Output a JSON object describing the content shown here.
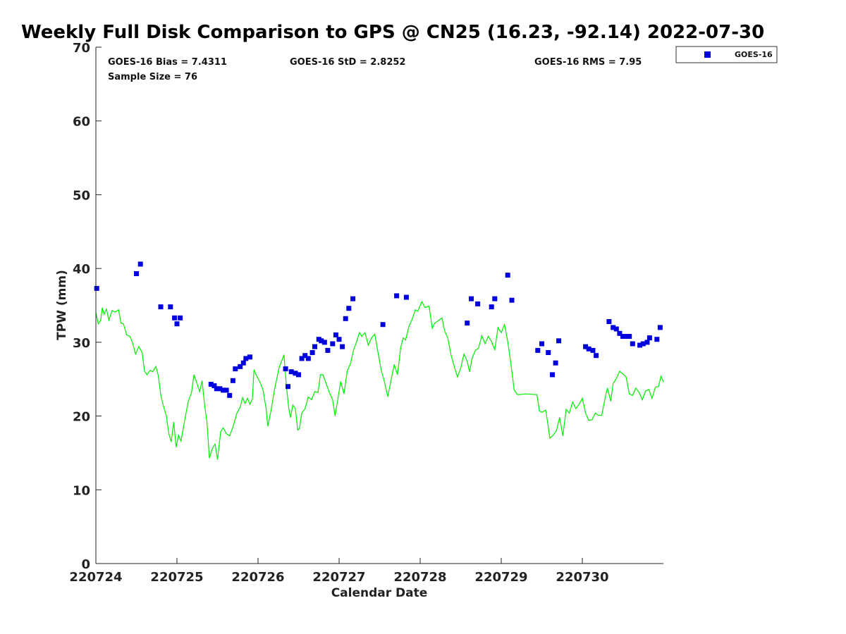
{
  "chart_data": {
    "type": "scatter",
    "title": "Weekly Full Disk Comparison to GPS @ CN25 (16.23, -92.14) 2022-07-30",
    "xlabel": "Calendar Date",
    "ylabel": "TPW (mm)",
    "xlim": [
      220724,
      220731
    ],
    "ylim": [
      0,
      70
    ],
    "x_ticks": [
      "220724",
      "220725",
      "220726",
      "220727",
      "220728",
      "220729",
      "220730"
    ],
    "y_ticks": [
      0,
      10,
      20,
      30,
      40,
      50,
      60,
      70
    ],
    "grid": false,
    "legend": {
      "position": "top-right",
      "entries": [
        "GOES-16"
      ]
    },
    "stats": {
      "bias": "GOES-16 Bias = 7.4311",
      "std": "GOES-16 StD = 2.8252",
      "rms": "GOES-16 RMS = 7.95",
      "sample_size": "Sample Size = 76"
    },
    "colors": {
      "goes16": "#0000dd",
      "gps": "#00ee00"
    },
    "series": [
      {
        "name": "GOES-16",
        "kind": "scatter",
        "points": [
          [
            220724.01,
            37.3
          ],
          [
            220724.5,
            39.3
          ],
          [
            220724.55,
            40.6
          ],
          [
            220724.8,
            34.8
          ],
          [
            220724.92,
            34.8
          ],
          [
            220724.97,
            33.3
          ],
          [
            220725.0,
            32.5
          ],
          [
            220725.04,
            33.3
          ],
          [
            220725.42,
            24.3
          ],
          [
            220725.46,
            24.1
          ],
          [
            220725.49,
            23.7
          ],
          [
            220725.53,
            23.7
          ],
          [
            220725.57,
            23.5
          ],
          [
            220725.61,
            23.5
          ],
          [
            220725.65,
            22.8
          ],
          [
            220725.69,
            24.8
          ],
          [
            220725.72,
            26.4
          ],
          [
            220725.78,
            26.7
          ],
          [
            220725.82,
            27.2
          ],
          [
            220725.85,
            27.8
          ],
          [
            220725.9,
            28.0
          ],
          [
            220726.34,
            26.4
          ],
          [
            220726.37,
            24.0
          ],
          [
            220726.41,
            26.0
          ],
          [
            220726.46,
            25.8
          ],
          [
            220726.5,
            25.6
          ],
          [
            220726.54,
            27.8
          ],
          [
            220726.58,
            28.2
          ],
          [
            220726.62,
            27.8
          ],
          [
            220726.67,
            28.6
          ],
          [
            220726.7,
            29.4
          ],
          [
            220726.75,
            30.4
          ],
          [
            220726.78,
            30.2
          ],
          [
            220726.82,
            30.0
          ],
          [
            220726.86,
            28.9
          ],
          [
            220726.92,
            29.8
          ],
          [
            220726.96,
            31.0
          ],
          [
            220727.0,
            30.4
          ],
          [
            220727.04,
            29.4
          ],
          [
            220727.08,
            33.2
          ],
          [
            220727.12,
            34.6
          ],
          [
            220727.17,
            35.9
          ],
          [
            220727.54,
            32.4
          ],
          [
            220727.71,
            36.3
          ],
          [
            220727.83,
            36.1
          ],
          [
            220728.58,
            32.6
          ],
          [
            220728.63,
            35.9
          ],
          [
            220728.71,
            35.2
          ],
          [
            220728.88,
            34.8
          ],
          [
            220728.92,
            35.9
          ],
          [
            220729.08,
            39.1
          ],
          [
            220729.13,
            35.7
          ],
          [
            220729.45,
            28.9
          ],
          [
            220729.5,
            29.8
          ],
          [
            220729.58,
            28.6
          ],
          [
            220729.63,
            25.6
          ],
          [
            220729.67,
            27.2
          ],
          [
            220729.71,
            30.2
          ],
          [
            220730.04,
            29.4
          ],
          [
            220730.08,
            29.1
          ],
          [
            220730.13,
            28.9
          ],
          [
            220730.17,
            28.2
          ],
          [
            220730.33,
            32.8
          ],
          [
            220730.38,
            32.0
          ],
          [
            220730.42,
            31.8
          ],
          [
            220730.46,
            31.2
          ],
          [
            220730.5,
            30.8
          ],
          [
            220730.54,
            30.8
          ],
          [
            220730.58,
            30.8
          ],
          [
            220730.62,
            29.8
          ],
          [
            220730.71,
            29.6
          ],
          [
            220730.75,
            29.8
          ],
          [
            220730.8,
            30.0
          ],
          [
            220730.83,
            30.6
          ],
          [
            220730.92,
            30.4
          ],
          [
            220730.96,
            32.0
          ]
        ]
      },
      {
        "name": "",
        "kind": "line",
        "points": [
          [
            220724.0,
            34.0
          ],
          [
            220724.03,
            32.5
          ],
          [
            220724.06,
            33.0
          ],
          [
            220724.08,
            34.7
          ],
          [
            220724.1,
            33.8
          ],
          [
            220724.13,
            34.5
          ],
          [
            220724.16,
            33.0
          ],
          [
            220724.2,
            34.3
          ],
          [
            220724.24,
            34.1
          ],
          [
            220724.28,
            34.4
          ],
          [
            220724.31,
            32.6
          ],
          [
            220724.34,
            32.5
          ],
          [
            220724.38,
            31.0
          ],
          [
            220724.42,
            30.8
          ],
          [
            220724.45,
            30.0
          ],
          [
            220724.49,
            28.4
          ],
          [
            220724.53,
            29.4
          ],
          [
            220724.57,
            28.6
          ],
          [
            220724.6,
            26.1
          ],
          [
            220724.63,
            25.6
          ],
          [
            220724.67,
            26.2
          ],
          [
            220724.7,
            26.0
          ],
          [
            220724.74,
            26.7
          ],
          [
            220724.77,
            25.5
          ],
          [
            220724.8,
            22.9
          ],
          [
            220724.83,
            21.5
          ],
          [
            220724.87,
            20.0
          ],
          [
            220724.9,
            17.6
          ],
          [
            220724.93,
            16.5
          ],
          [
            220724.96,
            19.2
          ],
          [
            220724.99,
            15.8
          ],
          [
            220725.02,
            17.4
          ],
          [
            220725.05,
            16.6
          ],
          [
            220725.1,
            19.7
          ],
          [
            220725.14,
            22.0
          ],
          [
            220725.18,
            23.2
          ],
          [
            220725.21,
            25.6
          ],
          [
            220725.25,
            24.3
          ],
          [
            220725.28,
            23.3
          ],
          [
            220725.31,
            24.8
          ],
          [
            220725.34,
            21.6
          ],
          [
            220725.37,
            19.2
          ],
          [
            220725.4,
            14.3
          ],
          [
            220725.44,
            15.7
          ],
          [
            220725.47,
            16.2
          ],
          [
            220725.5,
            14.1
          ],
          [
            220725.54,
            17.9
          ],
          [
            220725.57,
            18.4
          ],
          [
            220725.61,
            17.6
          ],
          [
            220725.65,
            17.3
          ],
          [
            220725.69,
            18.5
          ],
          [
            220725.74,
            20.4
          ],
          [
            220725.78,
            21.2
          ],
          [
            220725.81,
            22.5
          ],
          [
            220725.84,
            21.7
          ],
          [
            220725.87,
            22.4
          ],
          [
            220725.9,
            21.6
          ],
          [
            220725.93,
            22.3
          ],
          [
            220725.95,
            26.3
          ],
          [
            220725.98,
            25.5
          ],
          [
            220726.02,
            24.7
          ],
          [
            220726.06,
            23.6
          ],
          [
            220726.1,
            21.0
          ],
          [
            220726.12,
            18.6
          ],
          [
            220726.16,
            20.7
          ],
          [
            220726.2,
            23.4
          ],
          [
            220726.23,
            25.0
          ],
          [
            220726.26,
            26.6
          ],
          [
            220726.3,
            27.7
          ],
          [
            220726.32,
            28.3
          ],
          [
            220726.35,
            24.0
          ],
          [
            220726.38,
            21.0
          ],
          [
            220726.4,
            19.8
          ],
          [
            220726.43,
            21.5
          ],
          [
            220726.46,
            21.0
          ],
          [
            220726.49,
            18.1
          ],
          [
            220726.51,
            18.3
          ],
          [
            220726.54,
            20.4
          ],
          [
            220726.58,
            21.0
          ],
          [
            220726.62,
            22.6
          ],
          [
            220726.66,
            22.2
          ],
          [
            220726.7,
            23.3
          ],
          [
            220726.74,
            23.2
          ],
          [
            220726.77,
            25.6
          ],
          [
            220726.8,
            25.6
          ],
          [
            220726.84,
            24.4
          ],
          [
            220726.88,
            23.2
          ],
          [
            220726.92,
            22.2
          ],
          [
            220726.95,
            20.0
          ],
          [
            220726.98,
            22.0
          ],
          [
            220727.02,
            24.7
          ],
          [
            220727.06,
            23.0
          ],
          [
            220727.1,
            26.1
          ],
          [
            220727.14,
            27.1
          ],
          [
            220727.18,
            29.0
          ],
          [
            220727.22,
            30.2
          ],
          [
            220727.25,
            31.3
          ],
          [
            220727.28,
            30.8
          ],
          [
            220727.32,
            31.3
          ],
          [
            220727.36,
            29.6
          ],
          [
            220727.4,
            30.6
          ],
          [
            220727.44,
            31.1
          ],
          [
            220727.48,
            28.6
          ],
          [
            220727.52,
            26.2
          ],
          [
            220727.56,
            24.6
          ],
          [
            220727.6,
            22.6
          ],
          [
            220727.64,
            24.8
          ],
          [
            220727.68,
            27.0
          ],
          [
            220727.72,
            25.6
          ],
          [
            220727.76,
            29.3
          ],
          [
            220727.79,
            30.6
          ],
          [
            220727.82,
            30.3
          ],
          [
            220727.86,
            32.1
          ],
          [
            220727.9,
            33.1
          ],
          [
            220727.94,
            34.4
          ],
          [
            220727.97,
            34.2
          ],
          [
            220728.02,
            35.5
          ],
          [
            220728.06,
            34.7
          ],
          [
            220728.11,
            34.9
          ],
          [
            220728.15,
            31.9
          ],
          [
            220728.18,
            32.6
          ],
          [
            220728.22,
            32.9
          ],
          [
            220728.27,
            33.3
          ],
          [
            220728.3,
            31.6
          ],
          [
            220728.34,
            30.6
          ],
          [
            220728.38,
            28.3
          ],
          [
            220728.42,
            26.7
          ],
          [
            220728.46,
            25.3
          ],
          [
            220728.5,
            26.5
          ],
          [
            220728.54,
            28.4
          ],
          [
            220728.58,
            27.4
          ],
          [
            220728.61,
            26.0
          ],
          [
            220728.64,
            27.8
          ],
          [
            220728.68,
            28.9
          ],
          [
            220728.72,
            29.2
          ],
          [
            220728.76,
            30.9
          ],
          [
            220728.8,
            29.8
          ],
          [
            220728.84,
            30.8
          ],
          [
            220728.88,
            30.1
          ],
          [
            220728.92,
            29.0
          ],
          [
            220728.96,
            32.0
          ],
          [
            220729.0,
            31.3
          ],
          [
            220729.04,
            32.4
          ],
          [
            220729.08,
            30.1
          ],
          [
            220729.12,
            27.0
          ],
          [
            220729.16,
            23.5
          ],
          [
            220729.2,
            22.9
          ],
          [
            220729.3,
            23.0
          ],
          [
            220729.44,
            22.9
          ],
          [
            220729.47,
            20.7
          ],
          [
            220729.5,
            20.5
          ],
          [
            220729.55,
            20.8
          ],
          [
            220729.6,
            17.0
          ],
          [
            220729.64,
            17.4
          ],
          [
            220729.68,
            18.0
          ],
          [
            220729.72,
            19.8
          ],
          [
            220729.76,
            17.3
          ],
          [
            220729.8,
            20.9
          ],
          [
            220729.84,
            20.4
          ],
          [
            220729.88,
            21.9
          ],
          [
            220729.92,
            21.0
          ],
          [
            220729.96,
            21.6
          ],
          [
            220730.0,
            22.4
          ],
          [
            220730.04,
            20.4
          ],
          [
            220730.08,
            19.4
          ],
          [
            220730.12,
            19.5
          ],
          [
            220730.16,
            20.4
          ],
          [
            220730.2,
            20.1
          ],
          [
            220730.24,
            20.1
          ],
          [
            220730.28,
            22.4
          ],
          [
            220730.31,
            23.8
          ],
          [
            220730.35,
            22.0
          ],
          [
            220730.38,
            24.4
          ],
          [
            220730.42,
            25.1
          ],
          [
            220730.46,
            26.1
          ],
          [
            220730.5,
            25.7
          ],
          [
            220730.54,
            25.3
          ],
          [
            220730.58,
            23.0
          ],
          [
            220730.62,
            22.8
          ],
          [
            220730.66,
            23.8
          ],
          [
            220730.7,
            23.2
          ],
          [
            220730.74,
            22.2
          ],
          [
            220730.78,
            23.4
          ],
          [
            220730.82,
            23.6
          ],
          [
            220730.86,
            22.4
          ],
          [
            220730.9,
            23.9
          ],
          [
            220730.94,
            24.0
          ],
          [
            220730.97,
            25.4
          ],
          [
            220731.0,
            24.6
          ]
        ]
      }
    ]
  }
}
